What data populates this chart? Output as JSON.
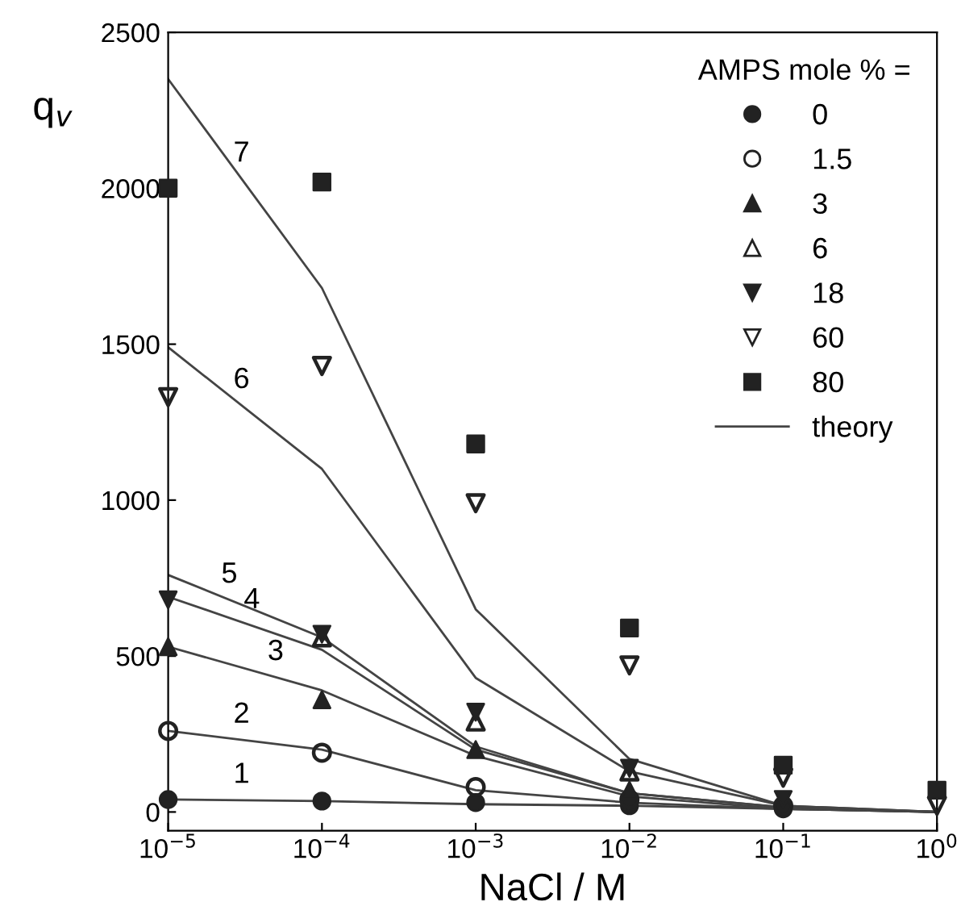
{
  "chart_data": {
    "type": "scatter",
    "xlabel": "NaCl / M",
    "ylabel": "q$_{v}$",
    "legend_title": "AMPS mole % =",
    "legend": "top right",
    "grid": false,
    "log": "x",
    "x": [
      1e-05,
      0.0001,
      0.001,
      0.01,
      0.1,
      1
    ],
    "xlim": [
      1e-05,
      1
    ],
    "xticks": [
      {
        "value": 1e-05,
        "label": "10$^{−5}$"
      },
      {
        "value": 0.0001,
        "label": "10$^{−4}$"
      },
      {
        "value": 0.001,
        "label": "10$^{−3}$"
      },
      {
        "value": 0.01,
        "label": "10$^{−2}$"
      },
      {
        "value": 0.1,
        "label": "10$^{−1}$"
      },
      {
        "value": 1,
        "label": "10$^{0}$"
      }
    ],
    "ylim": [
      -60,
      2500
    ],
    "yticks": [
      0,
      500,
      1000,
      1500,
      2000,
      2500
    ],
    "series": [
      {
        "name": "0",
        "marker": "circle",
        "color": "#222222",
        "values": [
          40,
          35,
          30,
          20,
          10,
          null
        ]
      },
      {
        "name": "1.5",
        "marker": "circle_open",
        "color": "#222222",
        "values": [
          260,
          190,
          80,
          40,
          20,
          null
        ]
      },
      {
        "name": "3",
        "marker": "triangle",
        "color": "#222222",
        "values": [
          530,
          360,
          200,
          70,
          null,
          null
        ]
      },
      {
        "name": "6",
        "marker": "triangle_open",
        "color": "#222222",
        "values": [
          null,
          560,
          290,
          130,
          null,
          null
        ]
      },
      {
        "name": "18",
        "marker": "triangle_down",
        "color": "#222222",
        "values": [
          680,
          570,
          320,
          140,
          40,
          null
        ]
      },
      {
        "name": "60",
        "marker": "triangle_down_open",
        "color": "#222222",
        "values": [
          1330,
          1430,
          990,
          470,
          110,
          20
        ]
      },
      {
        "name": "80",
        "marker": "square",
        "color": "#222222",
        "values": [
          2000,
          2020,
          1180,
          590,
          150,
          70
        ]
      },
      {
        "name": "theory",
        "type": "line",
        "marker": "none",
        "color": "#444444",
        "values": [
          40,
          35,
          25,
          20,
          10,
          0
        ]
      },
      {
        "type": "line",
        "marker": "none",
        "color": "#444444",
        "values": [
          260,
          200,
          70,
          30,
          10,
          0
        ]
      },
      {
        "type": "line",
        "marker": "none",
        "color": "#444444",
        "values": [
          530,
          390,
          180,
          50,
          10,
          0
        ]
      },
      {
        "type": "line",
        "marker": "none",
        "color": "#444444",
        "values": [
          690,
          520,
          200,
          60,
          15,
          0
        ]
      },
      {
        "type": "line",
        "marker": "none",
        "color": "#444444",
        "values": [
          760,
          560,
          210,
          60,
          15,
          0
        ]
      },
      {
        "type": "line",
        "marker": "none",
        "color": "#444444",
        "values": [
          1490,
          1100,
          430,
          130,
          20,
          0
        ]
      },
      {
        "type": "line",
        "marker": "none",
        "color": "#444444",
        "values": [
          2350,
          1680,
          650,
          170,
          20,
          0
        ]
      }
    ],
    "annotations": [
      {
        "text": "1",
        "x": 3e-05,
        "y": 38
      },
      {
        "text": "2",
        "x": 3e-05,
        "y": 231
      },
      {
        "text": "3",
        "x": 5e-05,
        "y": 432
      },
      {
        "text": "4",
        "x": 3.5e-05,
        "y": 598
      },
      {
        "text": "5",
        "x": 2.5e-05,
        "y": 680
      },
      {
        "text": "6",
        "x": 3e-05,
        "y": 1304
      },
      {
        "text": "7",
        "x": 3e-05,
        "y": 2030
      }
    ]
  }
}
